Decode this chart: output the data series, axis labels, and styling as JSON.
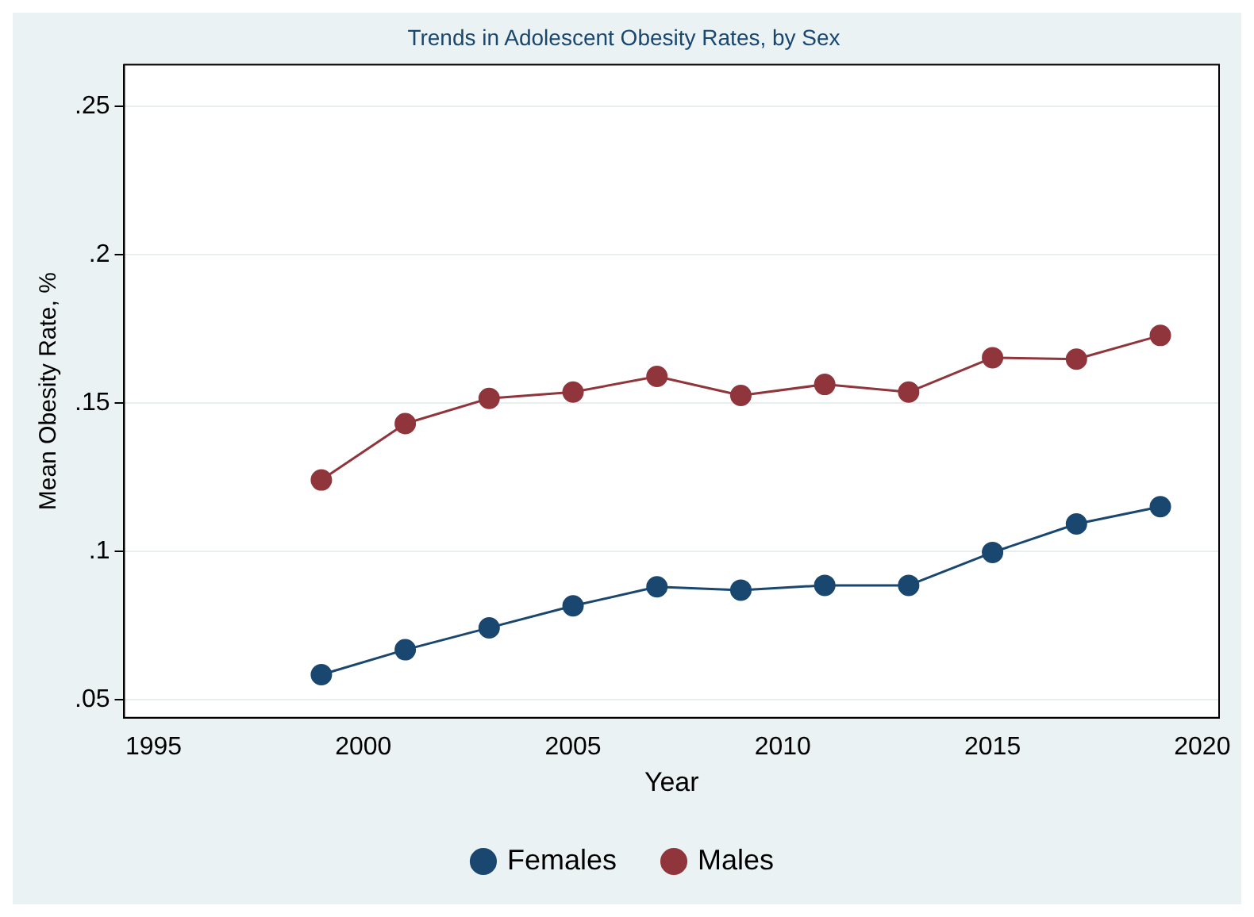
{
  "chart_data": {
    "type": "line",
    "title": "Trends in Adolescent Obesity Rates, by Sex",
    "xlabel": "Year",
    "ylabel": "Mean Obesity Rate, %",
    "x": [
      1999,
      2001,
      2003,
      2005,
      2007,
      2009,
      2011,
      2013,
      2015,
      2017,
      2019
    ],
    "series": [
      {
        "name": "Females",
        "color": "#1a476f",
        "values": [
          0.0585,
          0.0669,
          0.0743,
          0.0817,
          0.0881,
          0.087,
          0.0886,
          0.0886,
          0.0997,
          0.1093,
          0.1151
        ]
      },
      {
        "name": "Males",
        "color": "#90353b",
        "values": [
          0.1241,
          0.1431,
          0.1516,
          0.1537,
          0.159,
          0.1526,
          0.1563,
          0.1537,
          0.1653,
          0.1648,
          0.1728
        ]
      }
    ],
    "xlim": [
      1994.3,
      2020.4
    ],
    "xticks": [
      1995,
      2000,
      2005,
      2010,
      2015,
      2020
    ],
    "ylim": [
      0.044,
      0.264
    ],
    "yticks": [
      {
        "value": 0.05,
        "label": ".05"
      },
      {
        "value": 0.1,
        "label": ".1"
      },
      {
        "value": 0.15,
        "label": ".15"
      },
      {
        "value": 0.2,
        "label": ".2"
      },
      {
        "value": 0.25,
        "label": ".25"
      }
    ],
    "grid": "y",
    "legend": "bottom",
    "marker": "circle",
    "line_style": "solid"
  }
}
